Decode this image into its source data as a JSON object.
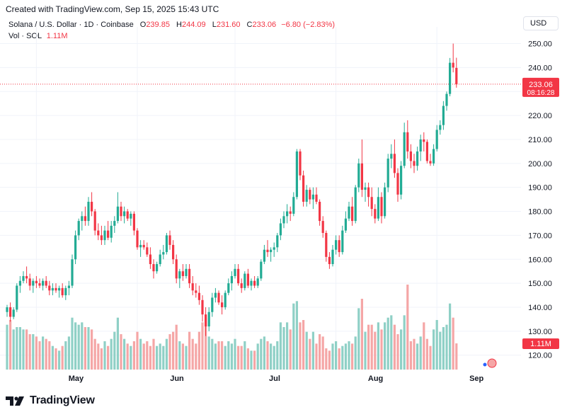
{
  "created_text": "Created with TradingView.com, Sep 15, 2025 15:43 UTC",
  "legend": {
    "symbol": "Solana / U.S. Dollar · 1D · Coinbase",
    "open_label": "O",
    "open": "239.85",
    "high_label": "H",
    "high": "244.09",
    "low_label": "L",
    "low": "231.60",
    "close_label": "C",
    "close": "233.06",
    "change": "−6.80 (−2.83%)",
    "volume_label": "Vol · SOL",
    "volume": "1.11M"
  },
  "currency": "USD",
  "price_badge": {
    "price": "233.06",
    "countdown": "08:16:28"
  },
  "volume_badge": "1.11M",
  "brand": "TradingView",
  "colors": {
    "up": "#22ab94",
    "down": "#f23645",
    "up_vol": "#8fd0c6",
    "down_vol": "#f5a6a6",
    "grid": "#f0f3fa",
    "text": "#131722"
  },
  "chart_data": {
    "type": "candlestick",
    "y_ticks": [
      "120.00",
      "130.00",
      "140.00",
      "150.00",
      "160.00",
      "170.00",
      "180.00",
      "190.00",
      "200.00",
      "210.00",
      "220.00",
      "230.00",
      "240.00",
      "250.00"
    ],
    "x_ticks": [
      {
        "label": "May",
        "index": 9
      },
      {
        "label": "Jun",
        "index": 40
      },
      {
        "label": "Jul",
        "index": 70
      },
      {
        "label": "Aug",
        "index": 101
      },
      {
        "label": "Sep",
        "index": 132
      }
    ],
    "ylim": [
      114,
      254
    ],
    "vol_max": 3.6,
    "last_price": 233.06,
    "candles": [
      [
        138.0,
        141.0,
        136.0,
        140.0,
        1.9
      ],
      [
        140.0,
        142.0,
        134.0,
        136.0,
        2.1
      ],
      [
        136.0,
        140.0,
        135.0,
        139.0,
        1.7
      ],
      [
        139.0,
        150.0,
        138.0,
        149.0,
        1.8
      ],
      [
        149.0,
        153.0,
        146.0,
        151.0,
        1.8
      ],
      [
        151.0,
        155.0,
        150.0,
        153.0,
        1.7
      ],
      [
        153.0,
        157.0,
        150.0,
        152.0,
        1.7
      ],
      [
        152.0,
        154.0,
        147.0,
        149.0,
        1.5
      ],
      [
        149.0,
        152.0,
        146.0,
        151.0,
        1.5
      ],
      [
        151.0,
        153.0,
        148.0,
        150.0,
        1.4
      ],
      [
        150.0,
        152.0,
        148.0,
        149.0,
        1.2
      ],
      [
        149.0,
        152.0,
        147.0,
        151.0,
        1.4
      ],
      [
        151.0,
        153.0,
        148.0,
        149.0,
        1.3
      ],
      [
        149.0,
        151.0,
        145.0,
        147.0,
        1.2
      ],
      [
        147.0,
        150.0,
        145.0,
        148.0,
        1.0
      ],
      [
        148.0,
        150.0,
        146.0,
        147.0,
        0.9
      ],
      [
        147.0,
        149.0,
        144.0,
        148.0,
        0.8
      ],
      [
        148.0,
        150.0,
        144.0,
        145.0,
        1.0
      ],
      [
        145.0,
        149.0,
        143.0,
        148.0,
        1.2
      ],
      [
        148.0,
        151.0,
        145.0,
        149.0,
        1.4
      ],
      [
        149.0,
        162.0,
        148.0,
        160.0,
        2.2
      ],
      [
        160.0,
        172.0,
        158.0,
        170.0,
        2.0
      ],
      [
        170.0,
        177.0,
        168.0,
        176.0,
        1.9
      ],
      [
        176.0,
        180.0,
        172.0,
        178.0,
        2.0
      ],
      [
        178.0,
        182.0,
        174.0,
        176.0,
        1.8
      ],
      [
        176.0,
        186.0,
        174.0,
        184.0,
        1.8
      ],
      [
        184.0,
        188.0,
        178.0,
        180.0,
        1.7
      ],
      [
        180.0,
        181.0,
        170.0,
        172.0,
        1.3
      ],
      [
        172.0,
        175.0,
        168.0,
        170.0,
        1.1
      ],
      [
        170.0,
        174.0,
        166.0,
        168.0,
        0.9
      ],
      [
        168.0,
        174.0,
        166.0,
        172.0,
        1.2
      ],
      [
        172.0,
        176.0,
        168.0,
        169.0,
        1.0
      ],
      [
        169.0,
        176.0,
        167.0,
        174.0,
        1.3
      ],
      [
        174.0,
        178.0,
        171.0,
        176.0,
        1.6
      ],
      [
        176.0,
        188.0,
        175.0,
        182.0,
        2.2
      ],
      [
        182.0,
        184.0,
        176.0,
        178.0,
        1.5
      ],
      [
        178.0,
        182.0,
        175.0,
        180.0,
        1.3
      ],
      [
        180.0,
        181.0,
        176.0,
        177.0,
        1.1
      ],
      [
        177.0,
        180.0,
        174.0,
        179.0,
        1.0
      ],
      [
        179.0,
        180.0,
        170.0,
        172.0,
        1.2
      ],
      [
        172.0,
        173.0,
        164.0,
        165.0,
        1.6
      ],
      [
        165.0,
        168.0,
        161.0,
        166.0,
        1.3
      ],
      [
        166.0,
        168.0,
        164.0,
        165.0,
        1.1
      ],
      [
        165.0,
        167.0,
        161.0,
        162.0,
        1.2
      ],
      [
        162.0,
        165.0,
        156.0,
        158.0,
        1.0
      ],
      [
        158.0,
        160.0,
        152.0,
        155.0,
        1.3
      ],
      [
        155.0,
        159.0,
        154.0,
        158.0,
        1.0
      ],
      [
        158.0,
        164.0,
        157.0,
        162.0,
        1.1
      ],
      [
        162.0,
        166.0,
        160.0,
        163.0,
        1.0
      ],
      [
        163.0,
        171.0,
        162.0,
        170.0,
        1.3
      ],
      [
        170.0,
        172.0,
        164.0,
        166.0,
        1.5
      ],
      [
        166.0,
        168.0,
        158.0,
        160.0,
        1.6
      ],
      [
        160.0,
        162.0,
        150.0,
        152.0,
        1.9
      ],
      [
        152.0,
        156.0,
        148.0,
        155.0,
        1.2
      ],
      [
        155.0,
        158.0,
        151.0,
        153.0,
        1.1
      ],
      [
        153.0,
        158.0,
        152.0,
        156.0,
        1.0
      ],
      [
        156.0,
        158.0,
        148.0,
        150.0,
        1.6
      ],
      [
        150.0,
        153.0,
        145.0,
        147.0,
        1.3
      ],
      [
        147.0,
        150.0,
        144.0,
        146.0,
        1.1
      ],
      [
        146.0,
        149.0,
        141.0,
        143.0,
        1.6
      ],
      [
        143.0,
        145.0,
        134.0,
        137.0,
        2.0
      ],
      [
        137.0,
        140.0,
        128.0,
        132.0,
        2.2
      ],
      [
        132.0,
        140.0,
        130.0,
        138.0,
        1.4
      ],
      [
        138.0,
        146.0,
        136.0,
        144.0,
        1.3
      ],
      [
        144.0,
        148.0,
        142.0,
        146.0,
        1.1
      ],
      [
        146.0,
        147.0,
        141.0,
        142.0,
        1.2
      ],
      [
        142.0,
        145.0,
        137.0,
        140.0,
        1.2
      ],
      [
        140.0,
        147.0,
        139.0,
        146.0,
        1.0
      ],
      [
        146.0,
        152.0,
        145.0,
        150.0,
        1.2
      ],
      [
        150.0,
        155.0,
        147.0,
        153.0,
        1.1
      ],
      [
        153.0,
        158.0,
        152.0,
        156.0,
        1.3
      ],
      [
        156.0,
        158.0,
        149.0,
        150.0,
        1.0
      ],
      [
        150.0,
        152.0,
        146.0,
        148.0,
        1.0
      ],
      [
        148.0,
        155.0,
        147.0,
        154.0,
        1.2
      ],
      [
        154.0,
        156.0,
        148.0,
        149.0,
        0.9
      ],
      [
        149.0,
        152.0,
        147.0,
        151.0,
        0.8
      ],
      [
        151.0,
        153.0,
        148.0,
        149.0,
        0.8
      ],
      [
        149.0,
        153.0,
        148.0,
        152.0,
        1.1
      ],
      [
        152.0,
        160.0,
        151.0,
        159.0,
        1.3
      ],
      [
        159.0,
        166.0,
        158.0,
        164.0,
        1.4
      ],
      [
        164.0,
        168.0,
        161.0,
        163.0,
        1.2
      ],
      [
        163.0,
        165.0,
        159.0,
        164.0,
        1.1
      ],
      [
        164.0,
        167.0,
        161.0,
        165.0,
        1.0
      ],
      [
        165.0,
        171.0,
        163.0,
        170.0,
        1.2
      ],
      [
        170.0,
        177.0,
        168.0,
        175.0,
        2.0
      ],
      [
        175.0,
        180.0,
        173.0,
        178.0,
        1.8
      ],
      [
        178.0,
        183.0,
        175.0,
        180.0,
        2.0
      ],
      [
        180.0,
        182.0,
        176.0,
        179.0,
        1.7
      ],
      [
        179.0,
        188.0,
        178.0,
        186.0,
        2.8
      ],
      [
        186.0,
        206.0,
        185.0,
        205.0,
        2.9
      ],
      [
        205.0,
        206.0,
        193.0,
        195.0,
        2.0
      ],
      [
        195.0,
        197.0,
        182.0,
        184.0,
        2.1
      ],
      [
        184.0,
        191.0,
        182.0,
        189.0,
        1.6
      ],
      [
        189.0,
        190.0,
        183.0,
        185.0,
        1.3
      ],
      [
        185.0,
        190.0,
        181.0,
        187.0,
        1.6
      ],
      [
        187.0,
        190.0,
        183.0,
        184.0,
        1.1
      ],
      [
        184.0,
        185.0,
        174.0,
        176.0,
        1.5
      ],
      [
        176.0,
        178.0,
        169.0,
        171.0,
        1.4
      ],
      [
        171.0,
        172.0,
        159.0,
        161.0,
        0.9
      ],
      [
        161.0,
        163.0,
        156.0,
        158.0,
        0.8
      ],
      [
        158.0,
        166.0,
        157.0,
        164.0,
        1.1
      ],
      [
        164.0,
        170.0,
        162.0,
        168.0,
        1.2
      ],
      [
        168.0,
        170.0,
        161.0,
        163.0,
        0.9
      ],
      [
        163.0,
        174.0,
        162.0,
        172.0,
        1.0
      ],
      [
        172.0,
        180.0,
        171.0,
        177.0,
        1.1
      ],
      [
        177.0,
        184.0,
        176.0,
        182.0,
        1.2
      ],
      [
        182.0,
        186.0,
        174.0,
        176.0,
        1.1
      ],
      [
        176.0,
        191.0,
        175.0,
        190.0,
        1.4
      ],
      [
        190.0,
        202.0,
        188.0,
        200.0,
        2.6
      ],
      [
        200.0,
        210.0,
        186.0,
        189.0,
        3.0
      ],
      [
        189.0,
        192.0,
        184.0,
        190.0,
        1.6
      ],
      [
        190.0,
        192.0,
        182.0,
        186.0,
        1.9
      ],
      [
        186.0,
        190.0,
        178.0,
        181.0,
        1.9
      ],
      [
        181.0,
        183.0,
        175.0,
        177.0,
        1.6
      ],
      [
        177.0,
        190.0,
        176.0,
        186.0,
        2.0
      ],
      [
        186.0,
        188.0,
        175.0,
        178.0,
        1.7
      ],
      [
        178.0,
        192.0,
        177.0,
        190.0,
        2.0
      ],
      [
        190.0,
        204.0,
        188.0,
        202.0,
        2.2
      ],
      [
        202.0,
        208.0,
        198.0,
        204.0,
        2.3
      ],
      [
        204.0,
        210.0,
        194.0,
        196.0,
        1.9
      ],
      [
        196.0,
        198.0,
        184.0,
        187.0,
        1.5
      ],
      [
        187.0,
        201.0,
        185.0,
        199.0,
        1.7
      ],
      [
        199.0,
        217.0,
        198.0,
        213.0,
        2.3
      ],
      [
        213.0,
        218.0,
        202.0,
        205.0,
        3.6
      ],
      [
        205.0,
        208.0,
        198.0,
        201.0,
        1.2
      ],
      [
        201.0,
        204.0,
        196.0,
        199.0,
        1.3
      ],
      [
        199.0,
        207.0,
        197.0,
        205.0,
        1.1
      ],
      [
        205.0,
        212.0,
        201.0,
        210.0,
        1.4
      ],
      [
        210.0,
        213.0,
        205.0,
        209.0,
        2.0
      ],
      [
        209.0,
        210.0,
        200.0,
        201.0,
        1.3
      ],
      [
        201.0,
        204.0,
        199.0,
        200.0,
        1.0
      ],
      [
        200.0,
        208.0,
        199.0,
        206.0,
        1.7
      ],
      [
        206.0,
        216.0,
        205.0,
        214.0,
        2.1
      ],
      [
        214.0,
        218.0,
        212.0,
        216.0,
        1.6
      ],
      [
        216.0,
        226.0,
        214.0,
        224.0,
        1.8
      ],
      [
        224.0,
        230.0,
        222.0,
        229.0,
        1.9
      ],
      [
        229.0,
        244.0,
        228.0,
        242.0,
        2.8
      ],
      [
        242.0,
        250.0,
        238.0,
        240.0,
        2.2
      ],
      [
        239.85,
        244.09,
        231.6,
        233.06,
        1.11
      ]
    ]
  }
}
